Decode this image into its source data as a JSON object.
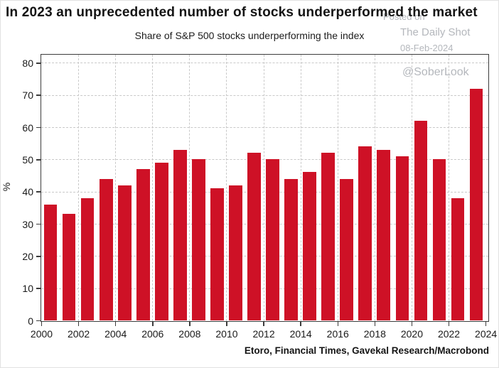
{
  "page": {
    "title": "In 2023 an unprecedented number of stocks underperformed the market",
    "source_note": "Etoro, Financial Times, Gavekal Research/Macrobond"
  },
  "watermark": {
    "posted_on": "Posted on",
    "site": "The Daily Shot",
    "date": "08-Feb-2024",
    "handle": "@SoberLook",
    "color": "#b4b7bc"
  },
  "chart_data": {
    "type": "bar",
    "title": "Share of S&P 500 stocks underperforming the index",
    "xlabel": "",
    "ylabel": "%",
    "categories": [
      2000,
      2001,
      2002,
      2003,
      2004,
      2005,
      2006,
      2007,
      2008,
      2009,
      2010,
      2011,
      2012,
      2013,
      2014,
      2015,
      2016,
      2017,
      2018,
      2019,
      2020,
      2021,
      2022,
      2023
    ],
    "values": [
      36,
      33,
      38,
      44,
      42,
      47,
      49,
      53,
      50,
      41,
      42,
      52,
      50,
      44,
      46,
      52,
      44,
      54,
      53,
      51,
      62,
      50,
      38,
      72
    ],
    "ylim": [
      0,
      82.5
    ],
    "xlim": [
      2000,
      2024.11
    ],
    "yticks": [
      0,
      10,
      20,
      30,
      40,
      50,
      60,
      70,
      80
    ],
    "xticks": [
      2000,
      2002,
      2004,
      2006,
      2008,
      2010,
      2012,
      2014,
      2016,
      2018,
      2020,
      2022,
      2024
    ],
    "grid": "dashed horizontal and vertical, drawn behind bars",
    "legend_position": "none",
    "bar_color": "#ce1126",
    "grid_color": "#c9c9c9",
    "axis_color": "#3c3c3c"
  }
}
